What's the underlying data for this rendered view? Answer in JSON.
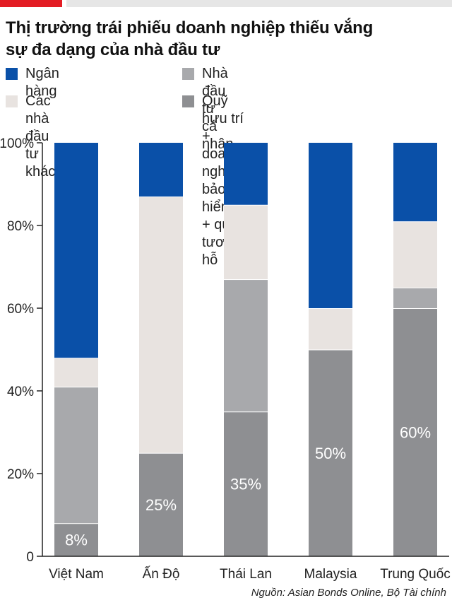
{
  "title_line1": "Thị trường trái phiếu doanh nghiệp thiếu vắng",
  "title_line2": "sự đa dạng của nhà đầu tư",
  "source": "Nguồn: Asian Bonds Online, Bộ Tài chính",
  "chart_data": {
    "type": "bar",
    "stacked": true,
    "categories": [
      "Việt Nam",
      "Ấn Độ",
      "Thái Lan",
      "Malaysia",
      "Trung Quốc"
    ],
    "series": [
      {
        "name": "Quỹ hưu trí + doanh nghiệp bảo hiểm + quỹ tương hỗ",
        "color": "#8e8f92",
        "values": [
          8,
          25,
          35,
          50,
          60
        ]
      },
      {
        "name": "Nhà đầu tư cá nhân",
        "color": "#a8a9ac",
        "values": [
          33,
          0,
          32,
          0,
          5
        ]
      },
      {
        "name": "Các nhà đầu tư khác",
        "color": "#e8e3e0",
        "values": [
          7,
          62,
          18,
          10,
          16
        ]
      },
      {
        "name": "Ngân hàng",
        "color": "#0a50a8",
        "values": [
          52,
          13,
          15,
          40,
          19
        ]
      }
    ],
    "legend_lines": [
      [
        "Ngân hàng"
      ],
      [
        "Nhà đầu tư cá nhân"
      ],
      [
        "Các nhà đầu tư khác"
      ],
      [
        "Quỹ hưu trí + doanh nghiệp bảo hiểm",
        "+ quỹ tương hỗ"
      ]
    ],
    "data_labels": [
      "8%",
      "25%",
      "35%",
      "50%",
      "60%"
    ],
    "y_ticks": [
      "0",
      "20%",
      "40%",
      "60%",
      "80%",
      "100%"
    ],
    "ylim": [
      0,
      100
    ],
    "grid": false,
    "legend_position": "top"
  }
}
